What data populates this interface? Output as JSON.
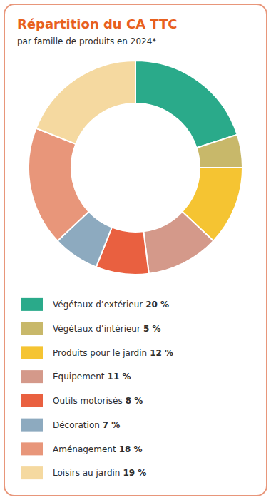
{
  "chart_data": {
    "type": "donut",
    "title": "Répartition du CA TTC",
    "subtitle": "par famille de produits en 2024*",
    "categories": [
      "Végétaux d’extérieur",
      "Végétaux d’intérieur",
      "Produits pour le jardin",
      "Équipement",
      "Outils motorisés",
      "Décoration",
      "Aménagement",
      "Loisirs au jardin"
    ],
    "values": [
      20,
      5,
      12,
      11,
      8,
      7,
      18,
      19
    ],
    "value_labels": [
      "20 %",
      "5 %",
      "12 %",
      "11 %",
      "8 %",
      "7 %",
      "18 %",
      "19 %"
    ],
    "colors": [
      "#2aaa8a",
      "#c8b86a",
      "#f5c432",
      "#d4998a",
      "#e96040",
      "#8daabf",
      "#e8967a",
      "#f5d9a0"
    ],
    "legend": "bottom"
  }
}
